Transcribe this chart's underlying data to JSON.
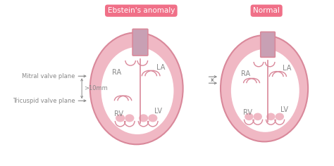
{
  "bg_color": "#ffffff",
  "heart_fill": "#f0b8c4",
  "heart_stroke": "#d9889a",
  "inner_fill": "#ffffff",
  "vessel_fill": "#c8a0b4",
  "label_color": "#888888",
  "arrow_color": "#888888",
  "title1": "Ebstein's anomaly",
  "title2": "Normal",
  "title_bg_left": "#f07088",
  "title_bg_right": "#f07088",
  "title_fg": "#ffffff",
  "label_RA": "RA",
  "label_LA": "LA",
  "label_RV": "RV",
  "label_LV": "LV",
  "ann_mitral": "Mitral valve plane",
  "ann_tricuspid": "Tricuspid valve plane",
  "ann_distance": ">10mm",
  "figsize": [
    4.74,
    2.36
  ],
  "dpi": 100
}
